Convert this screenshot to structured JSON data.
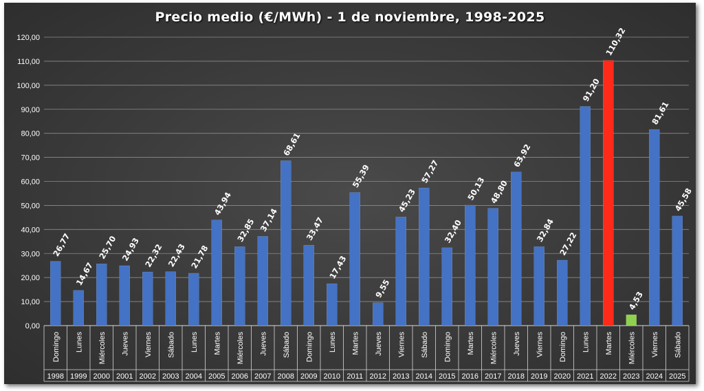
{
  "chart_data": {
    "type": "bar",
    "title": "Precio medio (€/MWh) - 1 de noviembre, 1998-2025",
    "ylim": [
      0,
      120
    ],
    "yticks": [
      "0,00",
      "10,00",
      "20,00",
      "30,00",
      "40,00",
      "50,00",
      "60,00",
      "70,00",
      "80,00",
      "90,00",
      "100,00",
      "110,00",
      "120,00"
    ],
    "grid": true,
    "categories": [
      "1998",
      "1999",
      "2000",
      "2001",
      "2002",
      "2003",
      "2004",
      "2005",
      "2006",
      "2007",
      "2008",
      "2009",
      "2010",
      "2011",
      "2012",
      "2013",
      "2014",
      "2015",
      "2016",
      "2017",
      "2018",
      "2019",
      "2020",
      "2021",
      "2022",
      "2023",
      "2024",
      "2025"
    ],
    "days": [
      "Domingo",
      "Lunes",
      "Miércoles",
      "Jueves",
      "Viernes",
      "Sábado",
      "Lunes",
      "Martes",
      "Miércoles",
      "Jueves",
      "Sábado",
      "Domingo",
      "Lunes",
      "Martes",
      "Jueves",
      "Viernes",
      "Sábado",
      "Domingo",
      "Martes",
      "Miércoles",
      "Jueves",
      "Viernes",
      "Domingo",
      "Lunes",
      "Martes",
      "Miércoles",
      "Viernes",
      "Sábado"
    ],
    "values": [
      26.77,
      14.67,
      25.7,
      24.93,
      22.32,
      22.43,
      21.78,
      43.94,
      32.85,
      37.14,
      68.61,
      33.47,
      17.43,
      55.39,
      9.55,
      45.23,
      57.27,
      32.4,
      50.13,
      48.8,
      63.92,
      32.84,
      27.22,
      91.2,
      110.32,
      4.53,
      81.61,
      45.58
    ],
    "value_labels": [
      "26,77",
      "14,67",
      "25,70",
      "24,93",
      "22,32",
      "22,43",
      "21,78",
      "43,94",
      "32,85",
      "37,14",
      "68,61",
      "33,47",
      "17,43",
      "55,39",
      "9,55",
      "45,23",
      "57,27",
      "32,40",
      "50,13",
      "48,80",
      "63,92",
      "32,84",
      "27,22",
      "91,20",
      "110,32",
      "4,53",
      "81,61",
      "45,58"
    ],
    "colors": {
      "default": "#4472c4",
      "max": "#ff2a1a",
      "min": "#8fd14f",
      "grid": "#8c8c8c",
      "text": "#ffffff"
    },
    "max_index": 24,
    "min_index": 25
  }
}
